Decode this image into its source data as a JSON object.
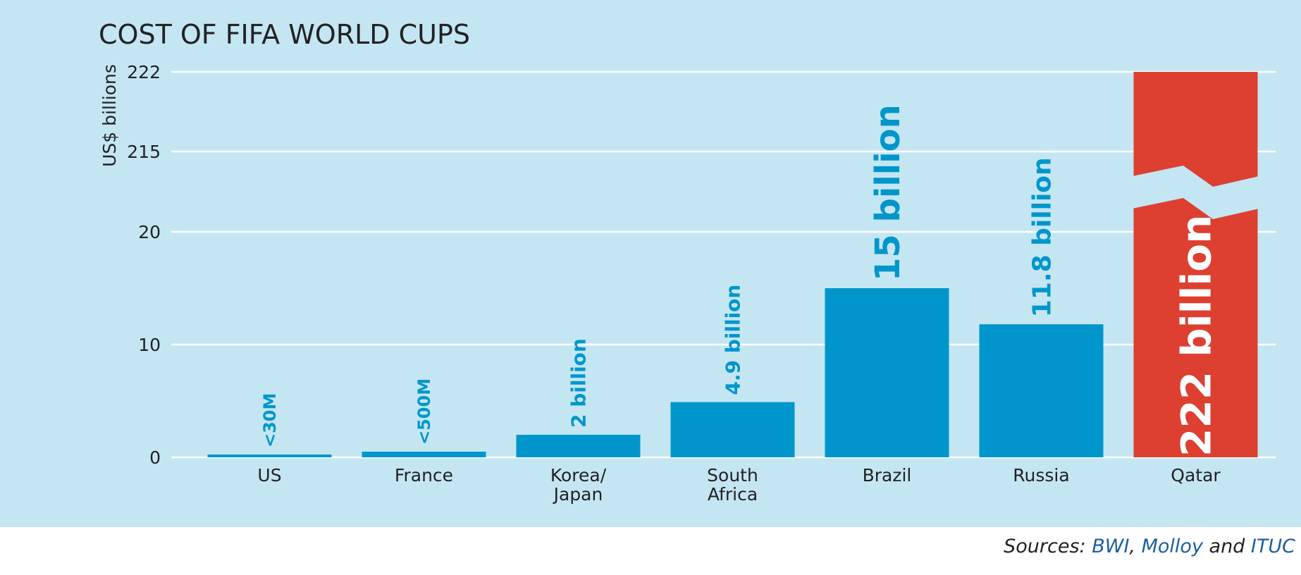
{
  "colors": {
    "panel": "#c4e6f3",
    "bar": "#0096cc",
    "highlight": "#dd3f30",
    "grid": "#ffffff",
    "text": "#222222",
    "label": "#0096cc",
    "source_link": "#1a5fa0"
  },
  "chart_data": {
    "type": "bar",
    "title": "COST OF FIFA WORLD CUPS",
    "ylabel": "US$ billions",
    "xlabel": "",
    "y_scale": "broken",
    "ylim": [
      0,
      222
    ],
    "y_ticks": [
      0,
      10,
      20,
      215,
      222
    ],
    "y_tick_labels": [
      "0",
      "10",
      "20",
      "215",
      "222"
    ],
    "grid": true,
    "categories": [
      "US",
      "France",
      "Korea/ Japan",
      "South Africa",
      "Brazil",
      "Russia",
      "Qatar"
    ],
    "category_lines": [
      [
        "US"
      ],
      [
        "France"
      ],
      [
        "Korea/",
        "Japan"
      ],
      [
        "South",
        "Africa"
      ],
      [
        "Brazil"
      ],
      [
        "Russia"
      ],
      [
        "Qatar"
      ]
    ],
    "values": [
      0.03,
      0.5,
      2,
      4.9,
      15,
      11.8,
      222
    ],
    "data_labels": [
      "<30M",
      "<500M",
      "2 billion",
      "4.9 billion",
      "15 billion",
      "11.8 billion",
      "222 billion"
    ],
    "highlight_index": 6
  },
  "source": {
    "prefix": "Sources:",
    "part1": "BWI",
    "sep1": ",",
    "part2": "Molloy",
    "sep2": "and",
    "part3": "ITUC"
  }
}
